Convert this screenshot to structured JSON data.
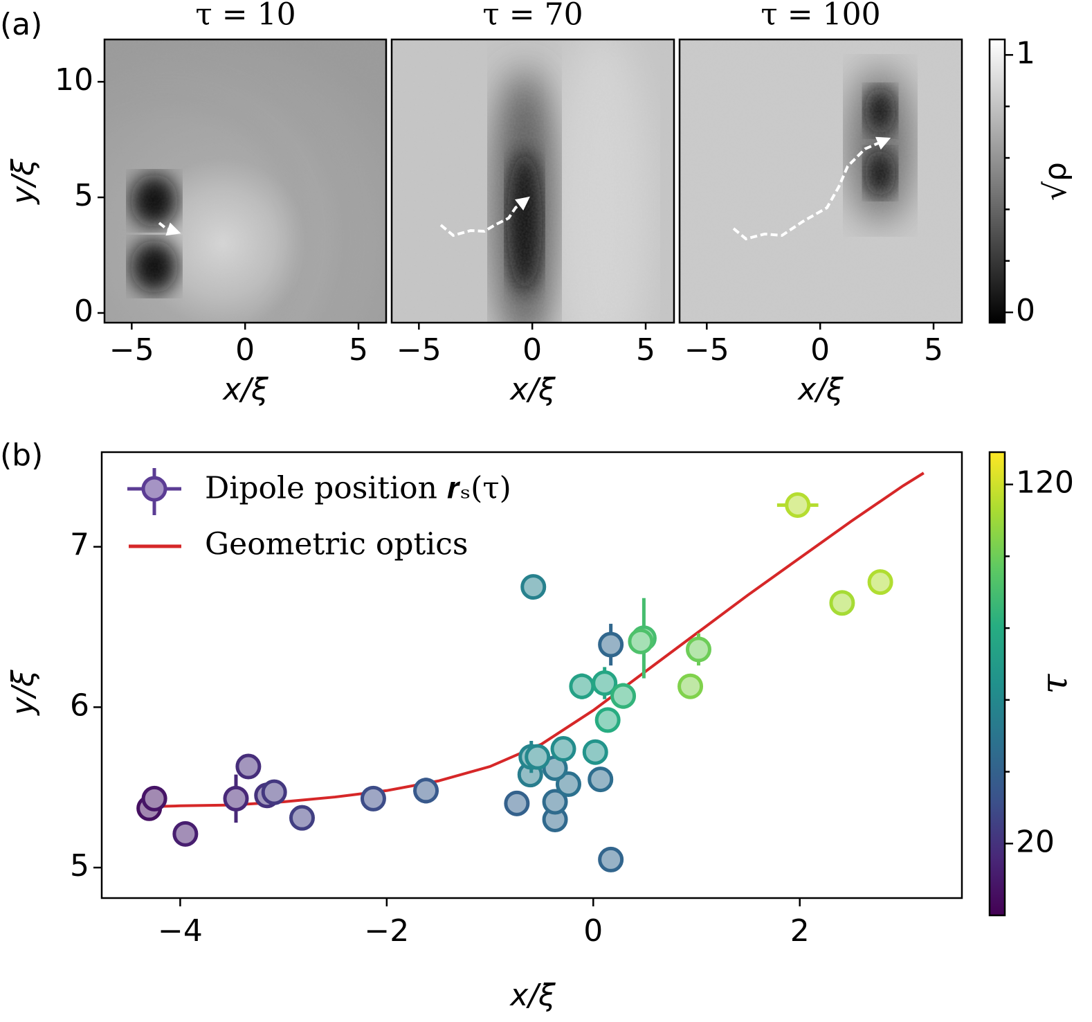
{
  "chart_data": [
    {
      "type": "image",
      "panel_label": "(a)",
      "title": "τ = 10",
      "xlabel": "x/ξ",
      "ylabel": "y/ξ",
      "xlim": [
        -6.2,
        6.25
      ],
      "ylim": [
        -0.42,
        11.83
      ],
      "xticks": [
        {
          "value": -5,
          "label": "−5"
        },
        0,
        5
      ],
      "yticks": [
        0,
        5,
        10
      ]
    },
    {
      "type": "image",
      "title": "τ = 70",
      "xlabel": "x/ξ",
      "xlim": [
        -6.2,
        6.25
      ],
      "ylim": [
        -0.42,
        11.83
      ],
      "xticks": [
        {
          "value": -5,
          "label": "−5"
        },
        0,
        5
      ]
    },
    {
      "type": "image",
      "title": "τ = 100",
      "xlabel": "x/ξ",
      "xlim": [
        -6.2,
        6.25
      ],
      "ylim": [
        -0.42,
        11.83
      ],
      "xticks": [
        {
          "value": -5,
          "label": "−5"
        },
        0,
        5
      ],
      "colorbar": {
        "label": "√ρ",
        "lim": [
          -0.04,
          1.06
        ],
        "ticks": [
          0,
          1
        ],
        "minor_ticks": [
          0.2,
          0.4,
          0.6,
          0.8
        ]
      }
    },
    {
      "type": "scatter",
      "panel_label": "(b)",
      "xlabel": "x/ξ",
      "ylabel": "y/ξ",
      "xlim": [
        -4.76,
        3.57
      ],
      "ylim": [
        4.81,
        7.59
      ],
      "xticks": [
        {
          "value": -4,
          "label": "−4"
        },
        {
          "value": -2,
          "label": "−2"
        },
        0,
        2
      ],
      "yticks": [
        5,
        6,
        7
      ],
      "cmap": "viridis",
      "series": [
        {
          "name": "Dipole position 𝒓ₛ(τ)",
          "color": "#5b3c94",
          "x": [
            -4.3,
            -4.25,
            -3.95,
            -3.46,
            -3.34,
            -3.16,
            -3.09,
            -2.82,
            -2.13,
            -1.62,
            -0.74,
            -0.37,
            -0.37,
            0.17,
            0.07,
            0.17,
            -0.24,
            -0.37,
            -0.61,
            -0.58,
            -0.6,
            -0.54,
            -0.29,
            0.02,
            0.14,
            -0.11,
            0.11,
            0.29,
            0.49,
            0.46,
            0.94,
            1.02,
            1.98,
            2.41,
            2.78
          ],
          "values": [
            5.37,
            5.43,
            5.21,
            5.43,
            5.63,
            5.45,
            5.47,
            5.31,
            5.43,
            5.48,
            5.4,
            5.3,
            5.41,
            5.05,
            5.55,
            6.39,
            5.52,
            5.62,
            5.58,
            6.75,
            5.69,
            5.69,
            5.74,
            5.72,
            5.92,
            6.13,
            6.15,
            6.07,
            6.43,
            6.41,
            6.13,
            6.36,
            7.26,
            6.65,
            6.78
          ],
          "xerr": [
            0,
            0,
            0,
            0,
            0,
            0,
            0,
            0.1,
            0,
            0,
            0,
            0,
            0,
            0,
            0.12,
            0,
            0,
            0,
            0,
            0,
            0.1,
            0,
            0.1,
            0.1,
            0,
            0.12,
            0,
            0.12,
            0,
            0,
            0,
            0,
            0.2,
            0,
            0
          ],
          "yerr": [
            0,
            0,
            0,
            0.15,
            0,
            0,
            0,
            0,
            0,
            0.08,
            0.07,
            0,
            0,
            0,
            0,
            0.13,
            0,
            0,
            0,
            0,
            0.1,
            0,
            0,
            0,
            0,
            0.08,
            0.1,
            0.08,
            0.25,
            0,
            0,
            0.1,
            0,
            0,
            0
          ],
          "tau": [
            6,
            8,
            12,
            16,
            18,
            20,
            22,
            25,
            30,
            36,
            40,
            44,
            45,
            42,
            46,
            43,
            48,
            50,
            54,
            56,
            58,
            60,
            62,
            66,
            80,
            74,
            76,
            84,
            90,
            92,
            104,
            100,
            115,
            112,
            114
          ]
        },
        {
          "name": "Geometric optics",
          "color": "#d62728",
          "x": [
            -4.3,
            -4,
            -3.5,
            -3,
            -2.5,
            -2,
            -1.5,
            -1,
            -0.5,
            0,
            0.5,
            1,
            1.5,
            2,
            2.5,
            3,
            3.2
          ],
          "values": [
            5.38,
            5.385,
            5.39,
            5.41,
            5.44,
            5.48,
            5.54,
            5.63,
            5.77,
            5.98,
            6.22,
            6.46,
            6.7,
            6.93,
            7.16,
            7.38,
            7.46
          ]
        }
      ],
      "colorbar": {
        "label": "τ",
        "lim": [
          0,
          129
        ],
        "ticks": [
          20,
          120
        ],
        "minor_ticks": [
          40,
          60,
          80,
          100
        ]
      }
    }
  ]
}
